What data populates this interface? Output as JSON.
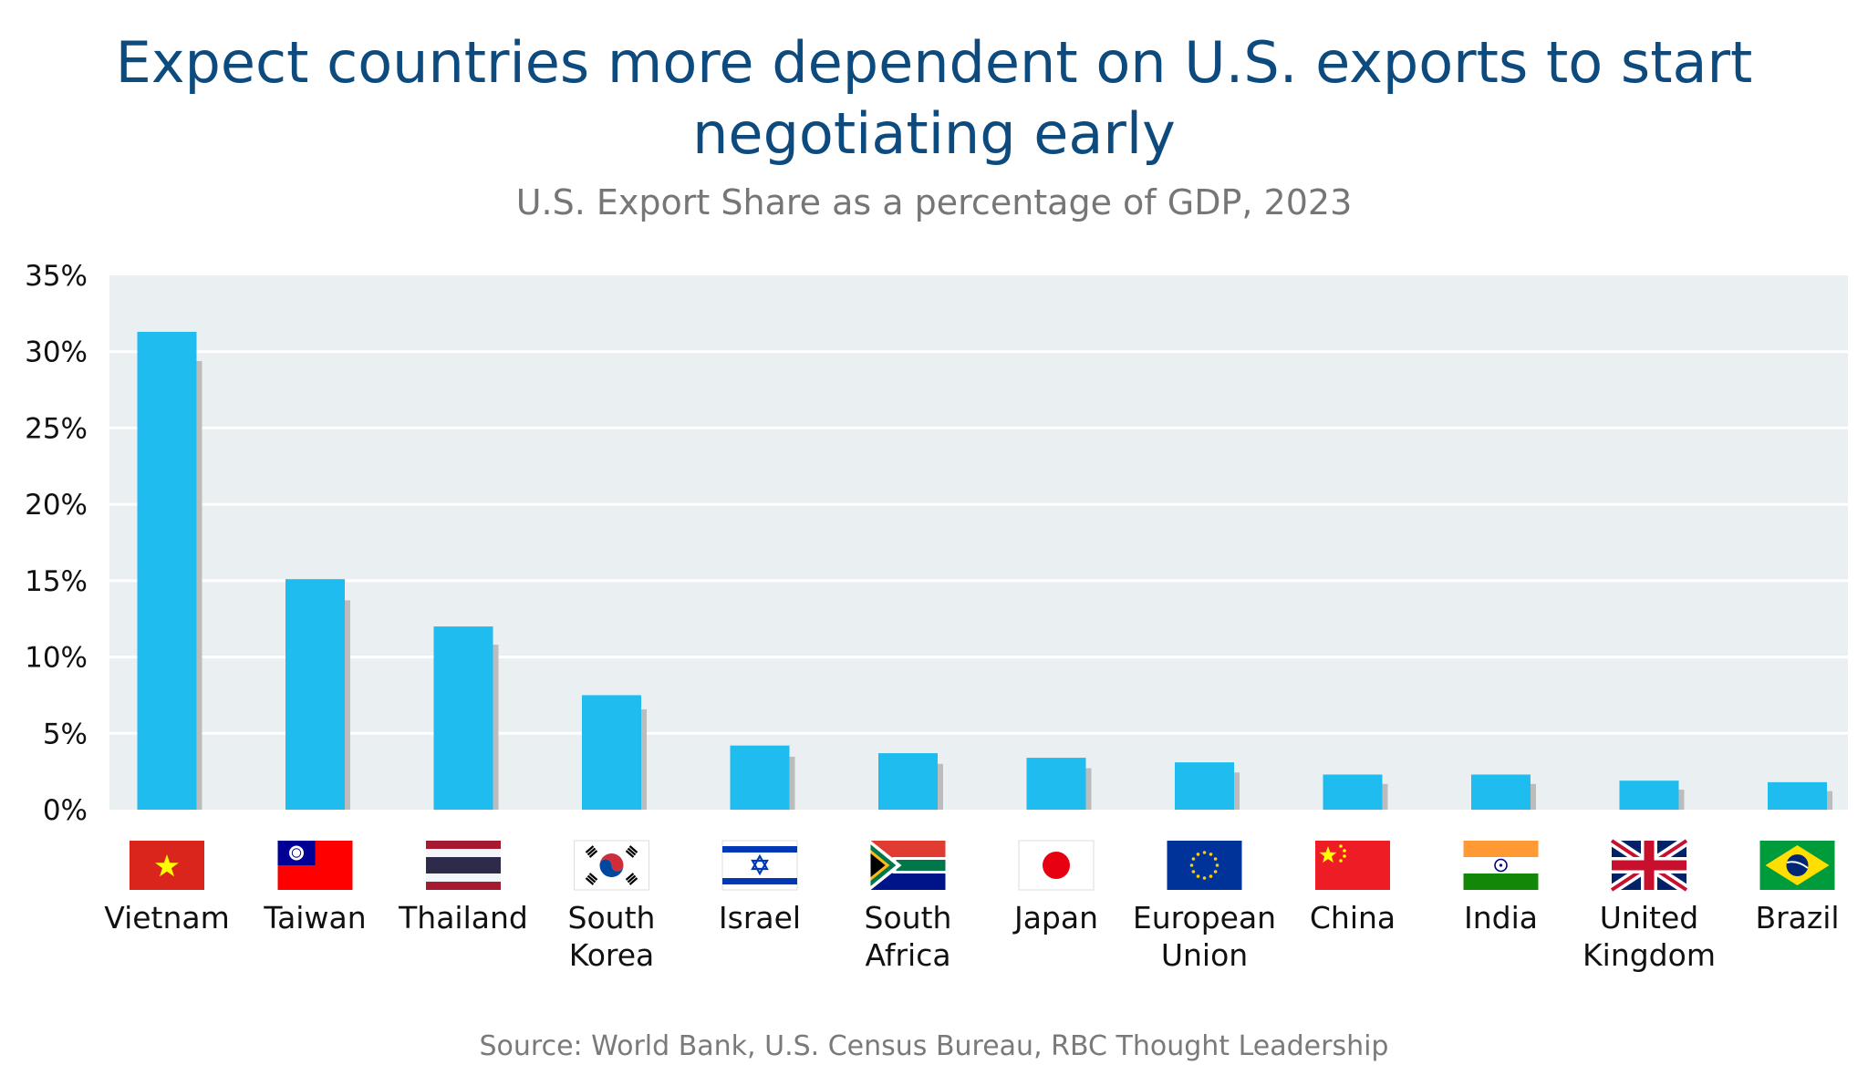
{
  "title_lines": [
    "Expect countries more dependent on U.S. exports to start",
    "negotiating early"
  ],
  "subtitle": "U.S. Export Share as a percentage of GDP, 2023",
  "source": "Source: World Bank, U.S. Census Bureau, RBC Thought Leadership",
  "colors": {
    "bar": "#1fbdef",
    "bar_shadow": "#bcbcbc",
    "plot_background": "#eaeff2",
    "gridline": "#ffffff",
    "title": "#0d4a7e"
  },
  "chart_data": {
    "type": "bar",
    "title": "Expect countries more dependent on U.S. exports to start negotiating early",
    "subtitle": "U.S. Export Share as a percentage of GDP, 2023",
    "xlabel": "",
    "ylabel": "",
    "ylim": [
      0,
      35
    ],
    "yticks": [
      0,
      5,
      10,
      15,
      20,
      25,
      30,
      35
    ],
    "ytick_labels": [
      "0%",
      "5%",
      "10%",
      "15%",
      "20%",
      "25%",
      "30%",
      "35%"
    ],
    "grid": true,
    "legend": "none",
    "categories": [
      [
        "Vietnam"
      ],
      [
        "Taiwan"
      ],
      [
        "Thailand"
      ],
      [
        "South",
        "Korea"
      ],
      [
        "Israel"
      ],
      [
        "South",
        "Africa"
      ],
      [
        "Japan"
      ],
      [
        "European",
        "Union"
      ],
      [
        "China"
      ],
      [
        "India"
      ],
      [
        "United",
        "Kingdom"
      ],
      [
        "Brazil"
      ]
    ],
    "flags": [
      "vietnam-flag-icon",
      "taiwan-flag-icon",
      "thailand-flag-icon",
      "south-korea-flag-icon",
      "israel-flag-icon",
      "south-africa-flag-icon",
      "japan-flag-icon",
      "european-union-flag-icon",
      "china-flag-icon",
      "india-flag-icon",
      "united-kingdom-flag-icon",
      "brazil-flag-icon"
    ],
    "values": [
      31.3,
      15.1,
      12.0,
      7.5,
      4.2,
      3.7,
      3.4,
      3.1,
      2.3,
      2.3,
      1.9,
      1.8
    ]
  }
}
